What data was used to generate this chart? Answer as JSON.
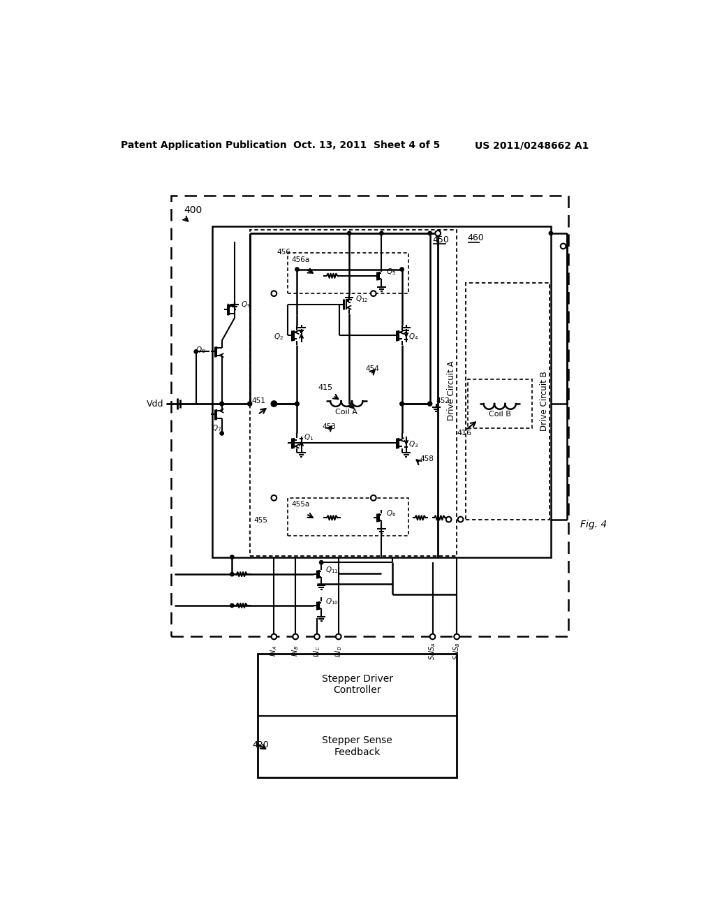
{
  "page_title_left": "Patent Application Publication",
  "page_title_center": "Oct. 13, 2011  Sheet 4 of 5",
  "page_title_right": "US 2011/0248662 A1",
  "fig_label": "Fig. 4",
  "background_color": "#ffffff"
}
